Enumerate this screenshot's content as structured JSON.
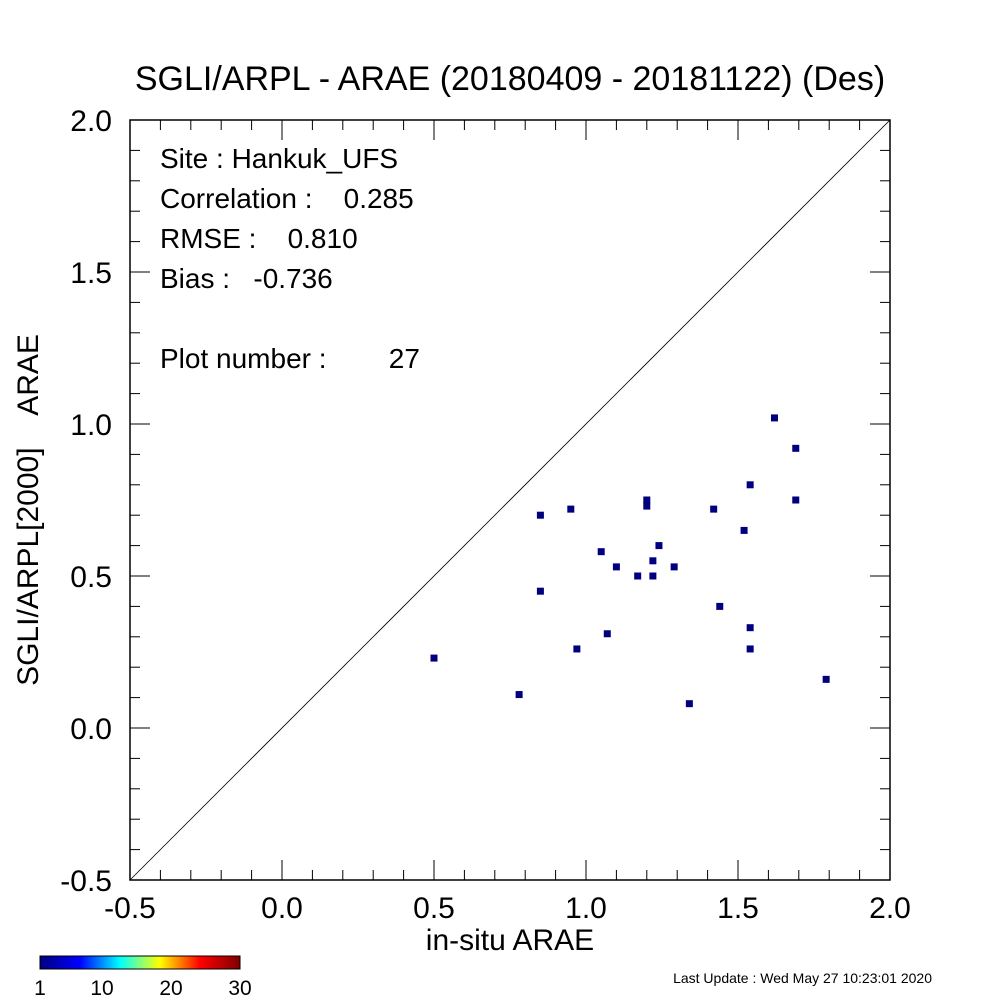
{
  "chart_data": {
    "type": "scatter",
    "title": "SGLI/ARPL - ARAE (20180409 - 20181122) (Des)",
    "xlabel": "in-situ ARAE",
    "ylabel": "SGLI/ARPL[2000]    ARAE",
    "xlim": [
      -0.5,
      2.0
    ],
    "ylim": [
      -0.5,
      2.0
    ],
    "x_ticks": [
      "-0.5",
      "0.0",
      "0.5",
      "1.0",
      "1.5",
      "2.0"
    ],
    "y_ticks": [
      "-0.5",
      "0.0",
      "0.5",
      "1.0",
      "1.5",
      "2.0"
    ],
    "reference_line": "1:1",
    "grid": false,
    "point_color": "#00007f",
    "points": [
      {
        "x": 0.5,
        "y": 0.23
      },
      {
        "x": 0.78,
        "y": 0.11
      },
      {
        "x": 0.85,
        "y": 0.7
      },
      {
        "x": 0.85,
        "y": 0.45
      },
      {
        "x": 0.95,
        "y": 0.72
      },
      {
        "x": 0.97,
        "y": 0.26
      },
      {
        "x": 1.05,
        "y": 0.58
      },
      {
        "x": 1.07,
        "y": 0.31
      },
      {
        "x": 1.1,
        "y": 0.53
      },
      {
        "x": 1.17,
        "y": 0.5
      },
      {
        "x": 1.2,
        "y": 0.75
      },
      {
        "x": 1.2,
        "y": 0.73
      },
      {
        "x": 1.22,
        "y": 0.55
      },
      {
        "x": 1.22,
        "y": 0.5
      },
      {
        "x": 1.24,
        "y": 0.6
      },
      {
        "x": 1.29,
        "y": 0.53
      },
      {
        "x": 1.34,
        "y": 0.08
      },
      {
        "x": 1.42,
        "y": 0.72
      },
      {
        "x": 1.44,
        "y": 0.4
      },
      {
        "x": 1.52,
        "y": 0.65
      },
      {
        "x": 1.54,
        "y": 0.8
      },
      {
        "x": 1.54,
        "y": 0.33
      },
      {
        "x": 1.54,
        "y": 0.26
      },
      {
        "x": 1.62,
        "y": 1.02
      },
      {
        "x": 1.69,
        "y": 0.92
      },
      {
        "x": 1.69,
        "y": 0.75
      },
      {
        "x": 1.79,
        "y": 0.16
      }
    ],
    "annotations": [
      "Site : Hankuk_UFS",
      "Correlation :    0.285",
      "RMSE :    0.810",
      "Bias :   -0.736",
      "Plot number :        27"
    ],
    "colorbar": {
      "ticks": [
        "1",
        "10",
        "20",
        "30"
      ],
      "min": 1,
      "max": 30,
      "colors": [
        "#00007f",
        "#0000ff",
        "#00ffff",
        "#ffff00",
        "#ff0000",
        "#7f0000"
      ]
    },
    "last_update": "Last Update : Wed May 27 10:23:01 2020"
  }
}
